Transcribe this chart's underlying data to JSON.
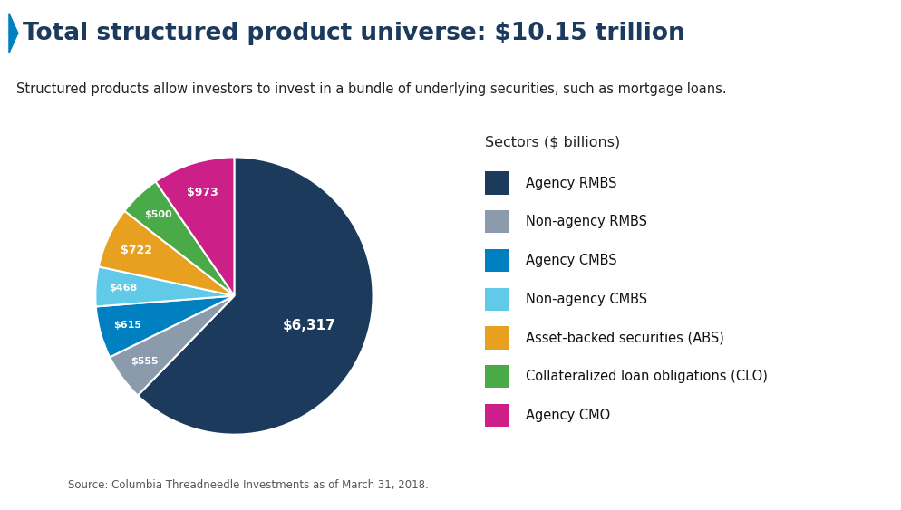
{
  "title": "Total structured product universe: $10.15 trillion",
  "subtitle": "Structured products allow investors to invest in a bundle of underlying securities, such as mortgage loans.",
  "source": "Source: Columbia Threadneedle Investments as of March 31, 2018.",
  "legend_title": "Sectors ($ billions)",
  "labels": [
    "Agency RMBS",
    "Non-agency RMBS",
    "Agency CMBS",
    "Non-agency CMBS",
    "Asset-backed securities (ABS)",
    "Collateralized loan obligations (CLO)",
    "Agency CMO"
  ],
  "values": [
    6317,
    555,
    615,
    468,
    722,
    500,
    973
  ],
  "display_labels": [
    "$6,317",
    "$555",
    "$615",
    "$468",
    "$722",
    "$500",
    "$973"
  ],
  "colors": [
    "#1b3a5c",
    "#8c9bab",
    "#0080c0",
    "#60cae8",
    "#e8a020",
    "#4aaa48",
    "#cc1f88"
  ],
  "bg_color": "#ffffff",
  "subtitle_bg_color": "#cccccc",
  "title_color": "#1b3a5c",
  "title_arrow_color": "#0080c0",
  "label_color": "#ffffff",
  "figsize": [
    9.94,
    5.63
  ],
  "dpi": 100
}
